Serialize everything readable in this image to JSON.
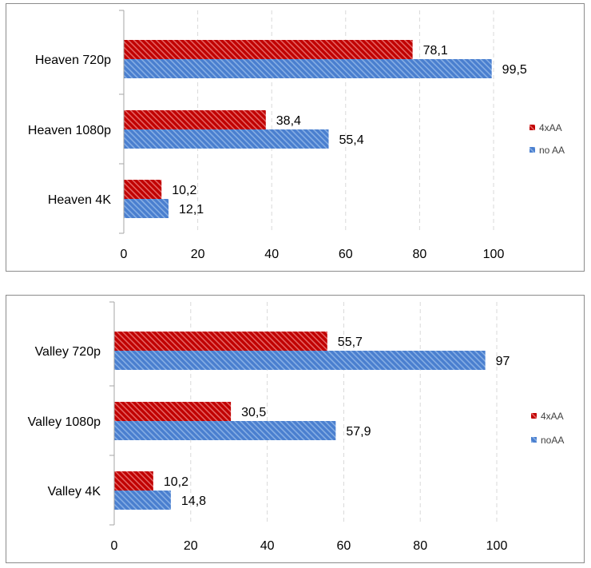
{
  "colors": {
    "series_4xaa": "#c00000",
    "series_4xaa_stripe": "#e46464",
    "series_noaa": "#4a7fcf",
    "series_noaa_stripe": "#86aee4",
    "gridline": "#d9d9d9",
    "axis": "#a6a6a6"
  },
  "chart_data": [
    {
      "type": "bar",
      "orientation": "horizontal",
      "categories": [
        "Heaven 720p",
        "Heaven 1080p",
        "Heaven 4K"
      ],
      "series": [
        {
          "name": "4xAA",
          "values": [
            78.1,
            38.4,
            10.2
          ],
          "labels": [
            "78,1",
            "38,4",
            "10,2"
          ]
        },
        {
          "name": "no AA",
          "values": [
            99.5,
            55.4,
            12.1
          ],
          "labels": [
            "99,5",
            "55,4",
            "12,1"
          ]
        }
      ],
      "xlim": [
        0,
        100
      ],
      "xticks": [
        0,
        20,
        40,
        60,
        80,
        100
      ],
      "xtick_labels": [
        "0",
        "20",
        "40",
        "60",
        "80",
        "100"
      ],
      "grid": true,
      "legend": "right"
    },
    {
      "type": "bar",
      "orientation": "horizontal",
      "categories": [
        "Valley 720p",
        "Valley 1080p",
        "Valley 4K"
      ],
      "series": [
        {
          "name": "4xAA",
          "values": [
            55.7,
            30.5,
            10.2
          ],
          "labels": [
            "55,7",
            "30,5",
            "10,2"
          ]
        },
        {
          "name": "noAA",
          "values": [
            97,
            57.9,
            14.8
          ],
          "labels": [
            "97",
            "57,9",
            "14,8"
          ]
        }
      ],
      "xlim": [
        0,
        100
      ],
      "xticks": [
        0,
        20,
        40,
        60,
        80,
        100
      ],
      "xtick_labels": [
        "0",
        "20",
        "40",
        "60",
        "80",
        "100"
      ],
      "grid": true,
      "legend": "right"
    }
  ]
}
